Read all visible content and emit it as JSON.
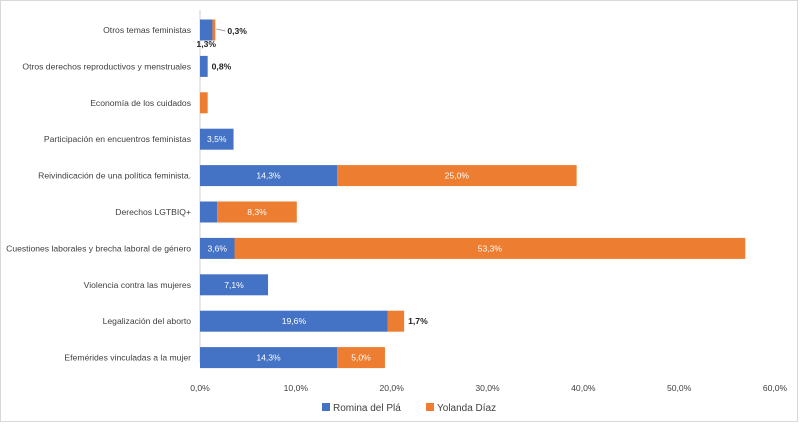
{
  "chart_data": {
    "type": "bar",
    "orientation": "horizontal",
    "stacked": true,
    "categories": [
      "Otros temas feministas",
      "Otros derechos reproductivos y menstruales",
      "Economía de los cuidados",
      "Participación en encuentros feministas",
      "Reivindicación de una política feminista.",
      "Derechos LGTBIQ+",
      "Cuestiones laborales y brecha laboral de género",
      "Violencia contra las mujeres",
      "Legalización del aborto",
      "Efemérides vinculadas a la mujer"
    ],
    "series": [
      {
        "name": "Romina del Plá",
        "color": "#4472C4",
        "values": [
          1.3,
          0.8,
          0,
          3.5,
          14.3,
          1.8,
          3.6,
          7.1,
          19.6,
          14.3
        ],
        "labels": [
          "1,3%",
          "0,8%",
          "",
          "3,5%",
          "14,3%",
          "1,8%",
          "3,6%",
          "7,1%",
          "19,6%",
          "14,3%"
        ]
      },
      {
        "name": "Yolanda Díaz",
        "color": "#ED7D31",
        "values": [
          0.3,
          0,
          0.8,
          0,
          25.0,
          8.3,
          53.3,
          0,
          1.7,
          5.0
        ],
        "labels": [
          "0,3%",
          "",
          "",
          "",
          "25,0%",
          "8,3%",
          "53,3%",
          "",
          "1,7%",
          "5,0%"
        ]
      }
    ],
    "xlim": [
      0,
      60
    ],
    "xticks": [
      "0,0%",
      "10,0%",
      "20,0%",
      "30,0%",
      "40,0%",
      "50,0%",
      "60,0%"
    ],
    "legend_position": "bottom",
    "grid": false
  }
}
